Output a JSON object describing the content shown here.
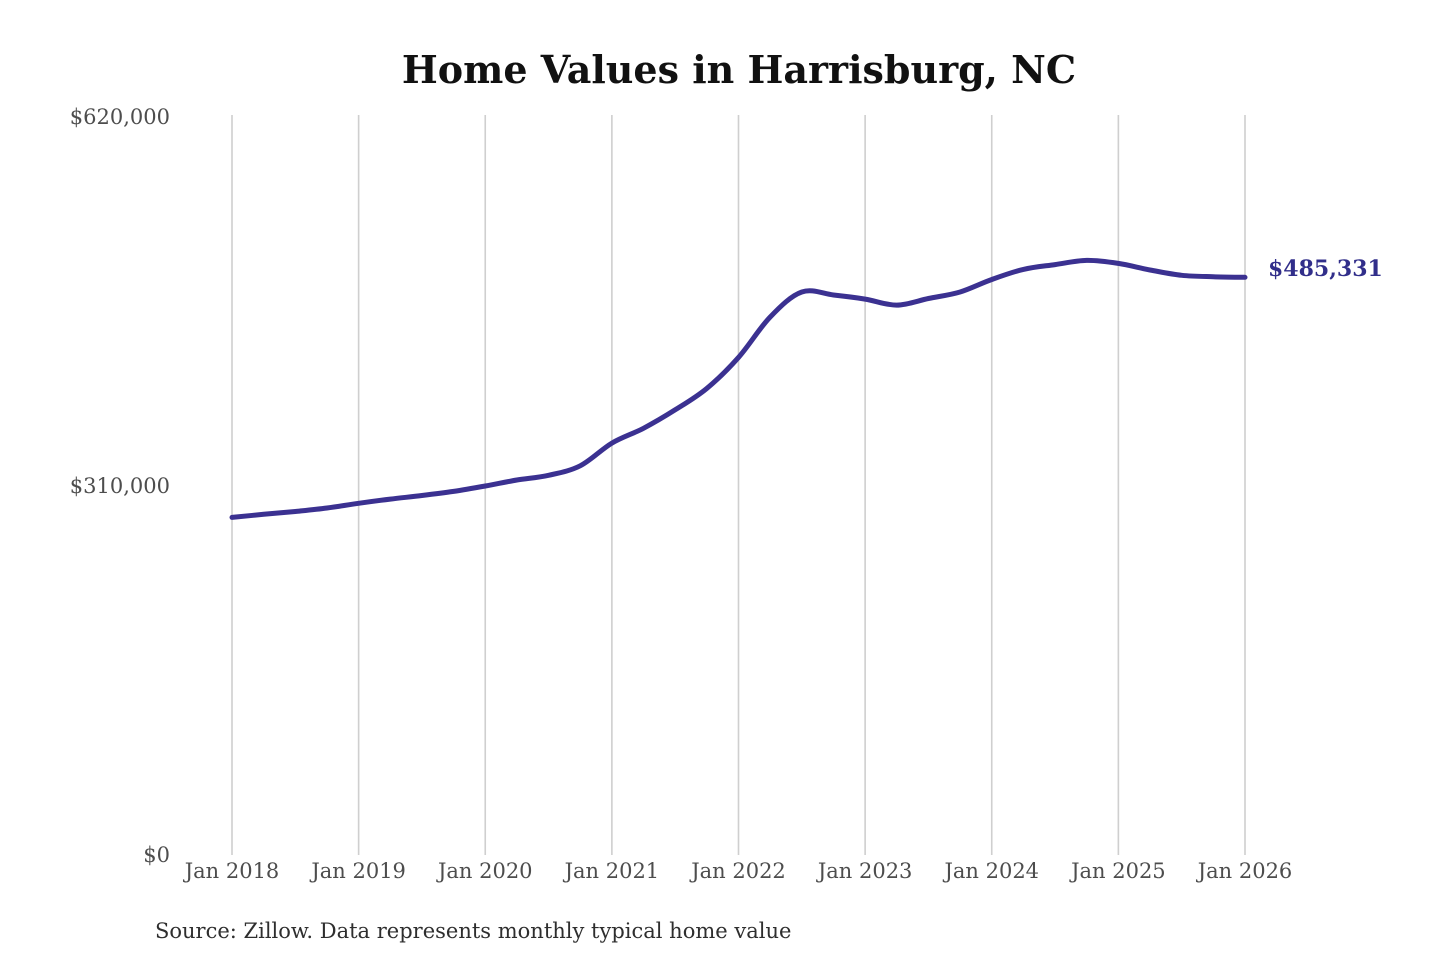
{
  "page": {
    "background": "#ffffff"
  },
  "chart_data": {
    "type": "line",
    "title": "Home Values in Harrisburg, NC",
    "x_tick_labels": [
      "Jan 2018",
      "Jan 2019",
      "Jan 2020",
      "Jan 2021",
      "Jan 2022",
      "Jan 2023",
      "Jan 2024",
      "Jan 2025",
      "Jan 2026"
    ],
    "y_ticks": [
      {
        "value": 620000,
        "label": "$620,000"
      },
      {
        "value": 310000,
        "label": "$310,000"
      },
      {
        "value": 0,
        "label": "$0"
      }
    ],
    "ylim": [
      0,
      620000
    ],
    "grid": "vertical-only",
    "legend_position": "none",
    "line_color": "#3b3191",
    "end_label": "$485,331",
    "end_label_color": "#312e8a",
    "end_value": 485331,
    "series": [
      {
        "points": [
          [
            "2018-01",
            283600
          ],
          [
            "2018-04",
            286200
          ],
          [
            "2018-07",
            288600
          ],
          [
            "2018-10",
            291500
          ],
          [
            "2019-01",
            295500
          ],
          [
            "2019-04",
            299000
          ],
          [
            "2019-07",
            302000
          ],
          [
            "2019-10",
            305500
          ],
          [
            "2020-01",
            310000
          ],
          [
            "2020-04",
            315000
          ],
          [
            "2020-07",
            319000
          ],
          [
            "2020-10",
            327000
          ],
          [
            "2021-01",
            346000
          ],
          [
            "2021-04",
            358500
          ],
          [
            "2021-07",
            374000
          ],
          [
            "2021-10",
            392000
          ],
          [
            "2022-01",
            418000
          ],
          [
            "2022-04",
            452000
          ],
          [
            "2022-07",
            473000
          ],
          [
            "2022-10",
            470500
          ],
          [
            "2023-01",
            467000
          ],
          [
            "2023-04",
            462000
          ],
          [
            "2023-07",
            467500
          ],
          [
            "2023-10",
            473000
          ],
          [
            "2024-01",
            483500
          ],
          [
            "2024-04",
            492000
          ],
          [
            "2024-07",
            496000
          ],
          [
            "2024-10",
            499500
          ],
          [
            "2025-01",
            497000
          ],
          [
            "2025-04",
            491500
          ],
          [
            "2025-07",
            487000
          ],
          [
            "2025-10",
            485800
          ],
          [
            "2026-01",
            485331
          ]
        ]
      }
    ]
  },
  "footer": {
    "source_note": "Source: Zillow. Data represents monthly typical home value"
  }
}
